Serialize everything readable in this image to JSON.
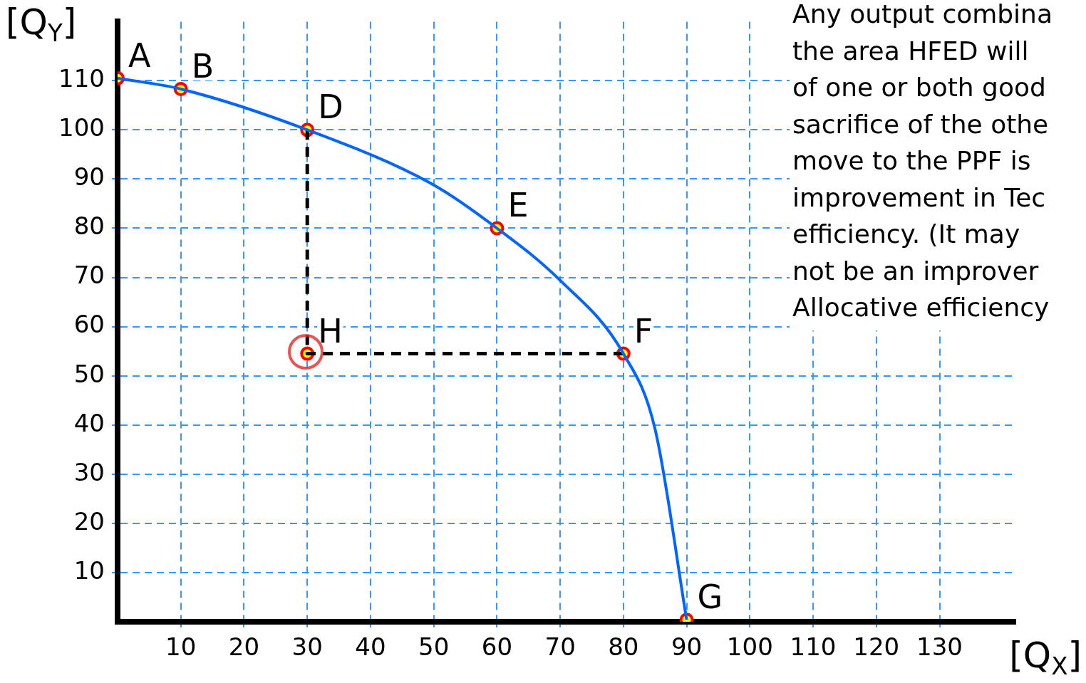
{
  "chart_data": {
    "type": "line",
    "xlabel": "[Q$_{X}$]",
    "ylabel": "[Q$_{Y}$]",
    "xlim": [
      0,
      142
    ],
    "ylim": [
      0,
      122
    ],
    "xticks": [
      10,
      20,
      30,
      40,
      50,
      60,
      70,
      80,
      90,
      100,
      110,
      120,
      130
    ],
    "yticks": [
      10,
      20,
      30,
      40,
      50,
      60,
      70,
      80,
      90,
      100,
      110
    ],
    "grid": true,
    "legend": false,
    "series": [
      {
        "type": "line",
        "color": "#0066ff",
        "marker": "none",
        "line_style": "solid",
        "x": [
          0,
          10,
          30,
          50,
          60,
          70,
          80,
          85,
          90
        ],
        "values": [
          110.5,
          108.3,
          100,
          88.8,
          80,
          69.4,
          54.5,
          39.2,
          0.4
        ]
      },
      {
        "type": "line",
        "color": "#000000",
        "marker": "none",
        "line_style": "dashed",
        "x": [
          30,
          30,
          80
        ],
        "values": [
          100,
          54.5,
          54.5
        ]
      },
      {
        "type": "scatter",
        "color": "#ff0000",
        "colors": [
          "#ffff00",
          "#ffff00",
          "#ffff00",
          "#ffff00",
          "#ffff00",
          "#ffff00",
          "#ffff00"
        ],
        "marker": "circle",
        "x": [
          0,
          10,
          30,
          60,
          80,
          90,
          30
        ],
        "values": [
          110.5,
          108.3,
          100,
          80,
          54.5,
          0.4,
          54.5
        ]
      }
    ],
    "annotations": [
      {
        "text": "A",
        "x": 0,
        "y": 110.5
      },
      {
        "text": "B",
        "x": 10,
        "y": 108.3
      },
      {
        "text": "D",
        "x": 30,
        "y": 100
      },
      {
        "text": "E",
        "x": 60,
        "y": 80
      },
      {
        "text": "F",
        "x": 80,
        "y": 54.5
      },
      {
        "text": "G",
        "x": 90,
        "y": 0.4
      },
      {
        "text": "H",
        "x": 30,
        "y": 54.5
      },
      "Any output combina\nthe area HFED will\nof one or both good\nsacrifice of the othe\nmove to the PPF is\nimprovement in Tec\nefficiency. (It may\nnot be an improver\nAllocative efficiency"
    ]
  }
}
